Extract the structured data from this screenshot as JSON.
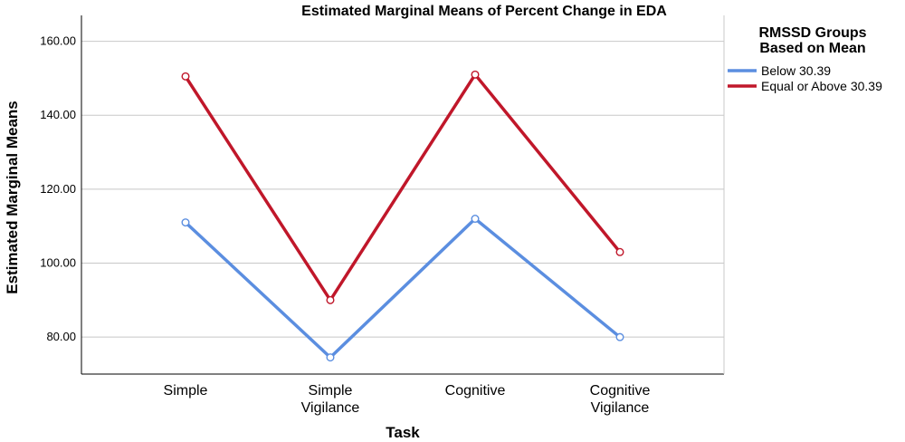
{
  "chart_data": {
    "type": "line",
    "title": "Estimated Marginal Means of Percent Change in EDA",
    "xlabel": "Task",
    "ylabel": "Estimated Marginal Means",
    "categories": [
      [
        "Simple"
      ],
      [
        "Simple",
        "Vigilance"
      ],
      [
        "Cognitive"
      ],
      [
        "Cognitive",
        "Vigilance"
      ]
    ],
    "y_ticks": [
      "80.00",
      "100.00",
      "120.00",
      "140.00",
      "160.00"
    ],
    "ylim": [
      70,
      167
    ],
    "grid": "horizontal",
    "legend": {
      "title": [
        "RMSSD Groups",
        "Based on Mean"
      ],
      "placement": "top-right"
    },
    "series": [
      {
        "name": "Below 30.39",
        "color": "#5b8ee0",
        "values": [
          111.0,
          74.5,
          112.0,
          80.0
        ]
      },
      {
        "name": "Equal or Above 30.39",
        "color": "#c0172a",
        "values": [
          150.5,
          90.0,
          151.0,
          103.0
        ]
      }
    ]
  }
}
